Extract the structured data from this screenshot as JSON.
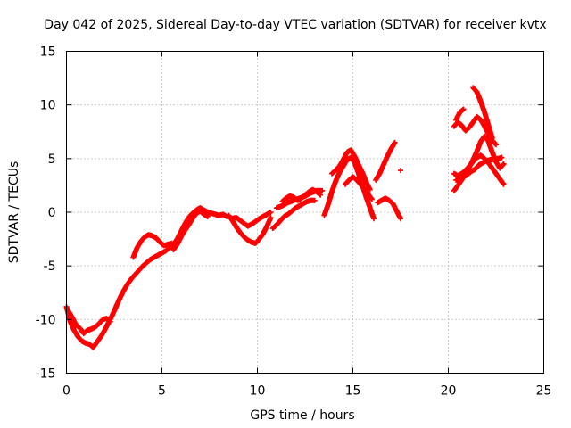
{
  "chart_data": {
    "type": "scatter",
    "title": "Day 042 of 2025, Sidereal Day-to-day VTEC variation (SDTVAR) for receiver kvtx",
    "xlabel": "GPS time / hours",
    "ylabel": "SDTVAR / TECUs",
    "xlim": [
      0,
      25
    ],
    "ylim": [
      -15,
      15
    ],
    "xticks": [
      "0",
      "5",
      "10",
      "15",
      "20",
      "25"
    ],
    "yticks": [
      "15",
      "10",
      "5",
      "0",
      "-5",
      "-10",
      "-15"
    ],
    "grid": true,
    "marker": "+",
    "color": "#ff0000",
    "series": [
      {
        "x": [
          0.0,
          0.2,
          0.4,
          0.6,
          0.8,
          1.0,
          1.2,
          1.4,
          1.6,
          1.8,
          2.0,
          2.2,
          2.4,
          2.6,
          2.8,
          3.0,
          3.2,
          3.4,
          3.6,
          3.8,
          4.0,
          4.2,
          4.4,
          4.6,
          4.8,
          5.0,
          5.2,
          5.4,
          5.6,
          5.8,
          6.0,
          6.2,
          6.4,
          6.6,
          6.8,
          7.0,
          7.2,
          7.4,
          7.6,
          7.8,
          8.0,
          8.2,
          8.4
        ],
        "y": [
          -8.8,
          -10.2,
          -11.0,
          -11.6,
          -12.0,
          -12.2,
          -12.3,
          -12.6,
          -12.1,
          -11.6,
          -11.0,
          -10.3,
          -9.6,
          -8.8,
          -8.0,
          -7.3,
          -6.7,
          -6.2,
          -5.8,
          -5.4,
          -5.0,
          -4.7,
          -4.4,
          -4.2,
          -4.0,
          -3.8,
          -3.6,
          -3.3,
          -3.0,
          -2.5,
          -1.8,
          -1.1,
          -0.5,
          -0.1,
          0.2,
          0.4,
          0.2,
          0.0,
          -0.1,
          -0.2,
          -0.3,
          -0.2,
          -0.4
        ]
      },
      {
        "x": [
          0.1,
          0.3,
          0.5,
          0.7,
          0.9,
          1.1,
          1.3,
          1.5,
          1.7,
          1.9,
          2.1,
          2.3
        ],
        "y": [
          -9.2,
          -9.8,
          -10.5,
          -10.8,
          -11.3,
          -11.0,
          -10.9,
          -10.7,
          -10.4,
          -10.0,
          -9.9,
          -10.2
        ]
      },
      {
        "x": [
          3.5,
          3.7,
          3.9,
          4.1,
          4.3,
          4.5,
          4.7,
          4.9,
          5.1,
          5.3,
          5.5
        ],
        "y": [
          -4.2,
          -3.3,
          -2.7,
          -2.3,
          -2.1,
          -2.2,
          -2.4,
          -2.8,
          -3.1,
          -3.0,
          -2.9
        ]
      },
      {
        "x": [
          5.6,
          5.8,
          6.0,
          6.2,
          6.4,
          6.6,
          6.8,
          7.0,
          7.2,
          7.4
        ],
        "y": [
          -3.5,
          -3.0,
          -2.3,
          -1.7,
          -1.2,
          -0.6,
          -0.1,
          0.1,
          -0.2,
          -0.4
        ]
      },
      {
        "x": [
          8.5,
          8.7,
          8.9,
          9.1,
          9.3,
          9.5,
          9.7,
          9.9,
          10.1,
          10.3,
          10.5,
          10.7
        ],
        "y": [
          -0.3,
          -0.8,
          -1.4,
          -1.9,
          -2.3,
          -2.6,
          -2.8,
          -2.9,
          -2.5,
          -2.0,
          -1.3,
          -0.5
        ]
      },
      {
        "x": [
          8.6,
          8.9,
          9.2,
          9.5,
          9.8,
          10.1,
          10.4,
          10.7
        ],
        "y": [
          -0.6,
          -0.5,
          -0.9,
          -1.3,
          -1.0,
          -0.6,
          -0.3,
          0.0
        ]
      },
      {
        "x": [
          10.8,
          11.0,
          11.2,
          11.4,
          11.6,
          11.8,
          12.0,
          12.2,
          12.4,
          12.6,
          12.8,
          13.0
        ],
        "y": [
          -1.5,
          -1.2,
          -0.8,
          -0.4,
          -0.2,
          0.1,
          0.4,
          0.6,
          0.8,
          1.0,
          1.1,
          1.1
        ]
      },
      {
        "x": [
          11.3,
          11.5,
          11.7,
          11.9,
          12.1,
          12.3,
          12.5,
          12.7,
          12.9,
          13.1,
          13.3
        ],
        "y": [
          1.0,
          1.3,
          1.5,
          1.4,
          1.1,
          1.3,
          1.6,
          1.9,
          2.1,
          1.9,
          1.6
        ]
      },
      {
        "x": [
          11.0,
          11.3,
          11.6,
          11.9,
          12.2,
          12.5,
          12.8,
          13.1,
          13.4
        ],
        "y": [
          0.4,
          0.6,
          0.9,
          1.1,
          1.3,
          1.5,
          1.8,
          2.0,
          2.0
        ]
      },
      {
        "x": [
          13.5,
          13.7,
          13.9,
          14.1,
          14.3,
          14.5,
          14.7,
          14.9,
          15.1,
          15.3,
          15.5,
          15.7,
          15.9,
          16.1
        ],
        "y": [
          -0.3,
          0.7,
          1.9,
          2.9,
          3.7,
          4.3,
          4.9,
          5.1,
          4.6,
          3.6,
          2.5,
          1.4,
          0.4,
          -0.6
        ]
      },
      {
        "x": [
          13.9,
          14.1,
          14.3,
          14.5,
          14.7,
          14.9,
          15.1,
          15.3,
          15.5,
          15.7,
          15.9
        ],
        "y": [
          3.6,
          3.9,
          4.3,
          4.9,
          5.6,
          5.8,
          5.2,
          4.4,
          3.7,
          2.8,
          2.1
        ]
      },
      {
        "x": [
          14.6,
          14.8,
          15.0,
          15.2,
          15.4,
          15.6,
          15.8,
          16.0
        ],
        "y": [
          2.6,
          3.0,
          3.3,
          3.0,
          2.6,
          2.2,
          1.7,
          1.2
        ]
      },
      {
        "x": [
          16.3,
          16.5,
          16.7,
          16.9,
          17.1,
          17.3,
          17.5
        ],
        "y": [
          0.9,
          1.1,
          1.3,
          1.1,
          0.8,
          0.1,
          -0.6
        ]
      },
      {
        "x": [
          16.2,
          16.4,
          16.6,
          16.8,
          17.0,
          17.2
        ],
        "y": [
          3.0,
          3.6,
          4.4,
          5.2,
          5.9,
          6.5
        ]
      },
      {
        "x": [
          17.5
        ],
        "y": [
          3.9
        ]
      },
      {
        "x": [
          20.3,
          20.5,
          20.7,
          20.9,
          21.1,
          21.3,
          21.5,
          21.7,
          21.9,
          22.1,
          22.3,
          22.5
        ],
        "y": [
          8.0,
          8.4,
          8.1,
          7.6,
          7.9,
          8.4,
          8.9,
          8.6,
          8.0,
          7.3,
          6.7,
          6.3
        ]
      },
      {
        "x": [
          20.4,
          20.6,
          20.8
        ],
        "y": [
          8.6,
          9.3,
          9.6
        ]
      },
      {
        "x": [
          21.3,
          21.5,
          21.7,
          21.9,
          22.1,
          22.3
        ],
        "y": [
          11.6,
          11.2,
          10.3,
          9.3,
          8.1,
          6.9
        ]
      },
      {
        "x": [
          20.3,
          20.5,
          20.7,
          20.9,
          21.1,
          21.3,
          21.5,
          21.7,
          21.9,
          22.1,
          22.3,
          22.5,
          22.7,
          22.9
        ],
        "y": [
          2.0,
          2.5,
          3.0,
          3.6,
          4.2,
          4.9,
          5.7,
          6.6,
          7.1,
          6.6,
          5.6,
          4.7,
          4.1,
          4.5
        ]
      },
      {
        "x": [
          20.3,
          20.5,
          20.7,
          20.9,
          21.1,
          21.3,
          21.5,
          21.7,
          21.9,
          22.1,
          22.3,
          22.5,
          22.7,
          22.9
        ],
        "y": [
          3.6,
          3.4,
          3.6,
          3.9,
          4.3,
          4.7,
          5.1,
          5.3,
          5.0,
          4.6,
          4.1,
          3.6,
          3.1,
          2.6
        ]
      },
      {
        "x": [
          20.4,
          20.6,
          20.8,
          21.0,
          21.2,
          21.4,
          21.6,
          21.8,
          22.0,
          22.2,
          22.4,
          22.6,
          22.8
        ],
        "y": [
          3.0,
          3.1,
          3.3,
          3.5,
          3.8,
          4.0,
          4.4,
          4.6,
          4.8,
          4.9,
          4.9,
          5.0,
          5.1
        ]
      }
    ]
  }
}
